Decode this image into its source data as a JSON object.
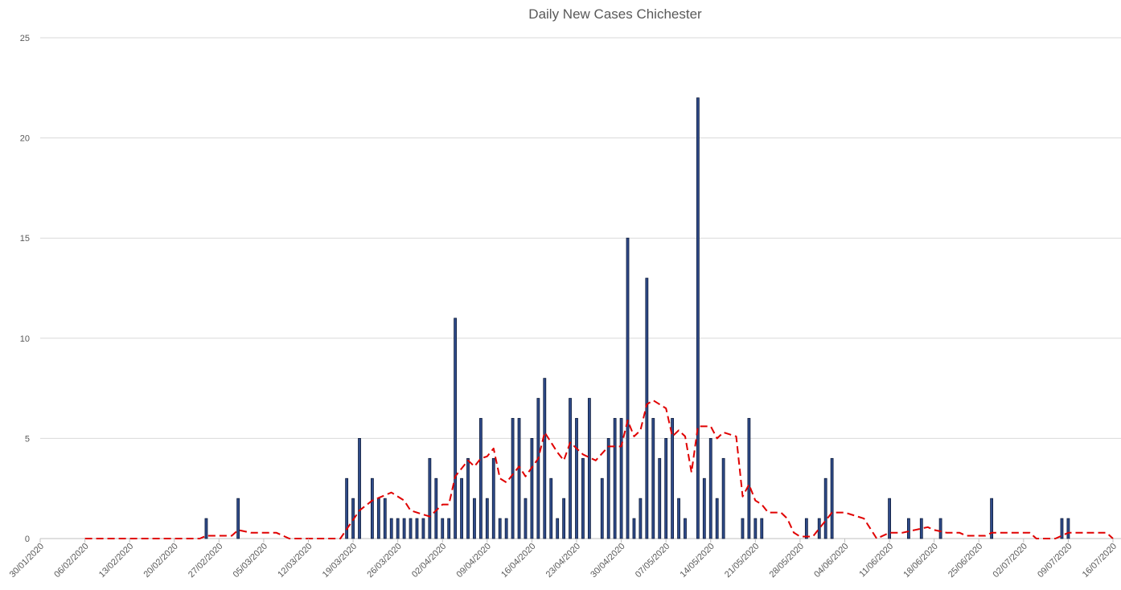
{
  "chart_data": {
    "type": "bar",
    "title": "Daily New Cases Chichester",
    "xlabel": "",
    "ylabel": "",
    "ylim": [
      0,
      25
    ],
    "yticks": [
      0,
      5,
      10,
      15,
      20,
      25
    ],
    "grid": "horizontal",
    "legend": "none",
    "x_ticks": [
      "30/01/2020",
      "06/02/2020",
      "13/02/2020",
      "20/02/2020",
      "27/02/2020",
      "05/03/2020",
      "12/03/2020",
      "19/03/2020",
      "26/03/2020",
      "02/04/2020",
      "09/04/2020",
      "16/04/2020",
      "23/04/2020",
      "30/04/2020",
      "07/05/2020",
      "14/05/2020",
      "21/05/2020",
      "28/05/2020",
      "04/06/2020",
      "11/06/2020",
      "18/06/2020",
      "25/06/2020",
      "02/07/2020",
      "09/07/2020",
      "16/07/2020"
    ],
    "x_start": "30/01/2020",
    "x_end": "16/07/2020",
    "colors": {
      "bar_fill": "#2F4B8A",
      "bar_stroke": "#0D1B3A",
      "line": "#E00000",
      "grid": "#D9D9D9"
    },
    "series": [
      {
        "type": "bar",
        "points": [
          {
            "date": "25/02/2020",
            "value": 1
          },
          {
            "date": "01/03/2020",
            "value": 2
          },
          {
            "date": "18/03/2020",
            "value": 3
          },
          {
            "date": "19/03/2020",
            "value": 2
          },
          {
            "date": "20/03/2020",
            "value": 5
          },
          {
            "date": "22/03/2020",
            "value": 3
          },
          {
            "date": "23/03/2020",
            "value": 2
          },
          {
            "date": "24/03/2020",
            "value": 2
          },
          {
            "date": "25/03/2020",
            "value": 1
          },
          {
            "date": "26/03/2020",
            "value": 1
          },
          {
            "date": "27/03/2020",
            "value": 1
          },
          {
            "date": "28/03/2020",
            "value": 1
          },
          {
            "date": "29/03/2020",
            "value": 1
          },
          {
            "date": "30/03/2020",
            "value": 1
          },
          {
            "date": "31/03/2020",
            "value": 4
          },
          {
            "date": "01/04/2020",
            "value": 3
          },
          {
            "date": "02/04/2020",
            "value": 1
          },
          {
            "date": "03/04/2020",
            "value": 1
          },
          {
            "date": "04/04/2020",
            "value": 11
          },
          {
            "date": "05/04/2020",
            "value": 3
          },
          {
            "date": "06/04/2020",
            "value": 4
          },
          {
            "date": "07/04/2020",
            "value": 2
          },
          {
            "date": "08/04/2020",
            "value": 6
          },
          {
            "date": "09/04/2020",
            "value": 2
          },
          {
            "date": "10/04/2020",
            "value": 4
          },
          {
            "date": "11/04/2020",
            "value": 1
          },
          {
            "date": "12/04/2020",
            "value": 1
          },
          {
            "date": "13/04/2020",
            "value": 6
          },
          {
            "date": "14/04/2020",
            "value": 6
          },
          {
            "date": "15/04/2020",
            "value": 2
          },
          {
            "date": "16/04/2020",
            "value": 5
          },
          {
            "date": "17/04/2020",
            "value": 7
          },
          {
            "date": "18/04/2020",
            "value": 8
          },
          {
            "date": "19/04/2020",
            "value": 3
          },
          {
            "date": "20/04/2020",
            "value": 1
          },
          {
            "date": "21/04/2020",
            "value": 2
          },
          {
            "date": "22/04/2020",
            "value": 7
          },
          {
            "date": "23/04/2020",
            "value": 6
          },
          {
            "date": "24/04/2020",
            "value": 4
          },
          {
            "date": "25/04/2020",
            "value": 7
          },
          {
            "date": "27/04/2020",
            "value": 3
          },
          {
            "date": "28/04/2020",
            "value": 5
          },
          {
            "date": "29/04/2020",
            "value": 6
          },
          {
            "date": "30/04/2020",
            "value": 6
          },
          {
            "date": "01/05/2020",
            "value": 15
          },
          {
            "date": "02/05/2020",
            "value": 1
          },
          {
            "date": "03/05/2020",
            "value": 2
          },
          {
            "date": "04/05/2020",
            "value": 13
          },
          {
            "date": "05/05/2020",
            "value": 6
          },
          {
            "date": "06/05/2020",
            "value": 4
          },
          {
            "date": "07/05/2020",
            "value": 5
          },
          {
            "date": "08/05/2020",
            "value": 6
          },
          {
            "date": "09/05/2020",
            "value": 2
          },
          {
            "date": "10/05/2020",
            "value": 1
          },
          {
            "date": "12/05/2020",
            "value": 22
          },
          {
            "date": "13/05/2020",
            "value": 3
          },
          {
            "date": "14/05/2020",
            "value": 5
          },
          {
            "date": "15/05/2020",
            "value": 2
          },
          {
            "date": "16/05/2020",
            "value": 4
          },
          {
            "date": "19/05/2020",
            "value": 1
          },
          {
            "date": "20/05/2020",
            "value": 6
          },
          {
            "date": "21/05/2020",
            "value": 1
          },
          {
            "date": "22/05/2020",
            "value": 1
          },
          {
            "date": "29/05/2020",
            "value": 1
          },
          {
            "date": "31/05/2020",
            "value": 1
          },
          {
            "date": "01/06/2020",
            "value": 3
          },
          {
            "date": "02/06/2020",
            "value": 4
          },
          {
            "date": "11/06/2020",
            "value": 2
          },
          {
            "date": "14/06/2020",
            "value": 1
          },
          {
            "date": "16/06/2020",
            "value": 1
          },
          {
            "date": "19/06/2020",
            "value": 1
          },
          {
            "date": "27/06/2020",
            "value": 2
          },
          {
            "date": "08/07/2020",
            "value": 1
          },
          {
            "date": "09/07/2020",
            "value": 1
          }
        ]
      },
      {
        "type": "line",
        "style": "dashed",
        "points": [
          {
            "date": "06/02/2020",
            "value": 0
          },
          {
            "date": "24/02/2020",
            "value": 0
          },
          {
            "date": "25/02/2020",
            "value": 0.14
          },
          {
            "date": "29/02/2020",
            "value": 0.14
          },
          {
            "date": "01/03/2020",
            "value": 0.43
          },
          {
            "date": "03/03/2020",
            "value": 0.29
          },
          {
            "date": "07/03/2020",
            "value": 0.29
          },
          {
            "date": "09/03/2020",
            "value": 0
          },
          {
            "date": "17/03/2020",
            "value": 0
          },
          {
            "date": "20/03/2020",
            "value": 1.4
          },
          {
            "date": "22/03/2020",
            "value": 1.9
          },
          {
            "date": "25/03/2020",
            "value": 2.3
          },
          {
            "date": "27/03/2020",
            "value": 1.9
          },
          {
            "date": "28/03/2020",
            "value": 1.4
          },
          {
            "date": "31/03/2020",
            "value": 1.1
          },
          {
            "date": "01/04/2020",
            "value": 1.4
          },
          {
            "date": "02/04/2020",
            "value": 1.7
          },
          {
            "date": "03/04/2020",
            "value": 1.7
          },
          {
            "date": "04/04/2020",
            "value": 3.1
          },
          {
            "date": "06/04/2020",
            "value": 3.9
          },
          {
            "date": "07/04/2020",
            "value": 3.6
          },
          {
            "date": "08/04/2020",
            "value": 4.0
          },
          {
            "date": "09/04/2020",
            "value": 4.1
          },
          {
            "date": "10/04/2020",
            "value": 4.5
          },
          {
            "date": "11/04/2020",
            "value": 3.0
          },
          {
            "date": "12/04/2020",
            "value": 2.8
          },
          {
            "date": "14/04/2020",
            "value": 3.6
          },
          {
            "date": "15/04/2020",
            "value": 3.1
          },
          {
            "date": "17/04/2020",
            "value": 4.0
          },
          {
            "date": "18/04/2020",
            "value": 5.3
          },
          {
            "date": "20/04/2020",
            "value": 4.3
          },
          {
            "date": "21/04/2020",
            "value": 3.9
          },
          {
            "date": "22/04/2020",
            "value": 4.8
          },
          {
            "date": "24/04/2020",
            "value": 4.2
          },
          {
            "date": "26/04/2020",
            "value": 3.9
          },
          {
            "date": "28/04/2020",
            "value": 4.6
          },
          {
            "date": "30/04/2020",
            "value": 4.6
          },
          {
            "date": "01/05/2020",
            "value": 5.9
          },
          {
            "date": "02/05/2020",
            "value": 5.1
          },
          {
            "date": "03/05/2020",
            "value": 5.4
          },
          {
            "date": "04/05/2020",
            "value": 6.7
          },
          {
            "date": "05/05/2020",
            "value": 6.9
          },
          {
            "date": "07/05/2020",
            "value": 6.5
          },
          {
            "date": "08/05/2020",
            "value": 5.1
          },
          {
            "date": "09/05/2020",
            "value": 5.4
          },
          {
            "date": "10/05/2020",
            "value": 5.1
          },
          {
            "date": "11/05/2020",
            "value": 3.3
          },
          {
            "date": "12/05/2020",
            "value": 5.6
          },
          {
            "date": "14/05/2020",
            "value": 5.6
          },
          {
            "date": "15/05/2020",
            "value": 5.0
          },
          {
            "date": "16/05/2020",
            "value": 5.3
          },
          {
            "date": "18/05/2020",
            "value": 5.1
          },
          {
            "date": "19/05/2020",
            "value": 2.1
          },
          {
            "date": "20/05/2020",
            "value": 2.7
          },
          {
            "date": "21/05/2020",
            "value": 1.9
          },
          {
            "date": "22/05/2020",
            "value": 1.7
          },
          {
            "date": "23/05/2020",
            "value": 1.3
          },
          {
            "date": "25/05/2020",
            "value": 1.3
          },
          {
            "date": "26/05/2020",
            "value": 1.0
          },
          {
            "date": "27/05/2020",
            "value": 0.3
          },
          {
            "date": "28/05/2020",
            "value": 0.1
          },
          {
            "date": "30/05/2020",
            "value": 0.1
          },
          {
            "date": "01/06/2020",
            "value": 0.9
          },
          {
            "date": "02/06/2020",
            "value": 1.3
          },
          {
            "date": "04/06/2020",
            "value": 1.3
          },
          {
            "date": "06/06/2020",
            "value": 1.1
          },
          {
            "date": "07/06/2020",
            "value": 1.0
          },
          {
            "date": "09/06/2020",
            "value": 0
          },
          {
            "date": "11/06/2020",
            "value": 0.29
          },
          {
            "date": "13/06/2020",
            "value": 0.29
          },
          {
            "date": "15/06/2020",
            "value": 0.43
          },
          {
            "date": "17/06/2020",
            "value": 0.57
          },
          {
            "date": "18/06/2020",
            "value": 0.43
          },
          {
            "date": "20/06/2020",
            "value": 0.29
          },
          {
            "date": "22/06/2020",
            "value": 0.29
          },
          {
            "date": "23/06/2020",
            "value": 0.14
          },
          {
            "date": "26/06/2020",
            "value": 0.14
          },
          {
            "date": "27/06/2020",
            "value": 0.29
          },
          {
            "date": "03/07/2020",
            "value": 0.29
          },
          {
            "date": "04/07/2020",
            "value": 0
          },
          {
            "date": "07/07/2020",
            "value": 0
          },
          {
            "date": "09/07/2020",
            "value": 0.29
          },
          {
            "date": "15/07/2020",
            "value": 0.29
          },
          {
            "date": "16/07/2020",
            "value": 0
          }
        ]
      }
    ]
  }
}
